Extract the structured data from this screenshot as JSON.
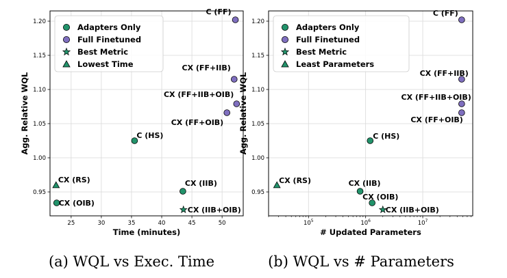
{
  "colors": {
    "adapters": "#22936b",
    "full": "#7f6fbf",
    "grid": "#d9d9d9",
    "edge": "#000000"
  },
  "legend_left": [
    {
      "marker": "circle",
      "color": "#22936b",
      "label": "Adapters Only"
    },
    {
      "marker": "circle",
      "color": "#7f6fbf",
      "label": "Full Finetuned"
    },
    {
      "marker": "star",
      "color": "#22936b",
      "label": "Best Metric"
    },
    {
      "marker": "triangle",
      "color": "#22936b",
      "label": "Lowest Time"
    }
  ],
  "legend_right": [
    {
      "marker": "circle",
      "color": "#22936b",
      "label": "Adapters Only"
    },
    {
      "marker": "circle",
      "color": "#7f6fbf",
      "label": "Full Finetuned"
    },
    {
      "marker": "star",
      "color": "#22936b",
      "label": "Best Metric"
    },
    {
      "marker": "triangle",
      "color": "#22936b",
      "label": "Least Parameters"
    }
  ],
  "chart_data": [
    {
      "type": "scatter",
      "caption": "(a) WQL vs Exec. Time",
      "xlabel": "Time (minutes)",
      "ylabel": "Agg. Relative WQL",
      "xlim": [
        21.5,
        53.5
      ],
      "ylim": [
        0.915,
        1.215
      ],
      "xticks": [
        25,
        30,
        35,
        40,
        45,
        50
      ],
      "xtick_labels": [
        "25",
        "30",
        "35",
        "40",
        "45",
        "50"
      ],
      "yticks": [
        0.95,
        1.0,
        1.05,
        1.1,
        1.15,
        1.2
      ],
      "ytick_labels": [
        "0.95",
        "1.00",
        "1.05",
        "1.10",
        "1.15",
        "1.20"
      ],
      "grid": true,
      "legend_position": "upper-left",
      "points": [
        {
          "label": "C (FF)",
          "x": 52.2,
          "y": 1.202,
          "group": "full",
          "marker": "circle",
          "anchor": "end",
          "dx": -6,
          "dy": -8
        },
        {
          "label": "CX (FF+IIB)",
          "x": 52.0,
          "y": 1.115,
          "group": "full",
          "marker": "circle",
          "anchor": "end",
          "dx": -5,
          "dy": -13
        },
        {
          "label": "CX (FF+IIB+OIB)",
          "x": 52.4,
          "y": 1.079,
          "group": "full",
          "marker": "circle",
          "anchor": "end",
          "dx": -4,
          "dy": -10
        },
        {
          "label": "CX (FF+OIB)",
          "x": 50.8,
          "y": 1.066,
          "group": "full",
          "marker": "circle",
          "anchor": "end",
          "dx": -5,
          "dy": 18
        },
        {
          "label": "C (HS)",
          "x": 35.5,
          "y": 1.025,
          "group": "adapters",
          "marker": "circle",
          "anchor": "start",
          "dx": 3,
          "dy": -4
        },
        {
          "label": "CX (RS)",
          "x": 22.5,
          "y": 0.96,
          "group": "adapters",
          "marker": "triangle",
          "anchor": "start",
          "dx": 3,
          "dy": -4
        },
        {
          "label": "CX (OIB)",
          "x": 22.6,
          "y": 0.934,
          "group": "adapters",
          "marker": "circle",
          "anchor": "start",
          "dx": 3,
          "dy": 4
        },
        {
          "label": "CX (IIB)",
          "x": 43.5,
          "y": 0.951,
          "group": "adapters",
          "marker": "circle",
          "anchor": "start",
          "dx": 3,
          "dy": -8
        },
        {
          "label": "CX (IIB+OIB)",
          "x": 43.6,
          "y": 0.924,
          "group": "adapters",
          "marker": "star",
          "anchor": "start",
          "dx": 6,
          "dy": 4
        }
      ]
    },
    {
      "type": "scatter",
      "caption": "(b) WQL vs # Parameters",
      "xlabel": "# Updated Parameters",
      "ylabel": "Agg. Relative WQL",
      "xscale": "log",
      "xlim": [
        20000,
        75000000
      ],
      "ylim": [
        0.915,
        1.215
      ],
      "xticks": [
        100000,
        1000000,
        10000000
      ],
      "xtick_labels": [
        {
          "base": "10",
          "exp": "5"
        },
        {
          "base": "10",
          "exp": "6"
        },
        {
          "base": "10",
          "exp": "7"
        }
      ],
      "yticks": [
        0.95,
        1.0,
        1.05,
        1.1,
        1.15,
        1.2
      ],
      "ytick_labels": [
        "0.95",
        "1.00",
        "1.05",
        "1.10",
        "1.15",
        "1.20"
      ],
      "grid": true,
      "legend_position": "upper-left",
      "points": [
        {
          "label": "C (FF)",
          "x": 48000000,
          "y": 1.202,
          "group": "full",
          "marker": "circle",
          "anchor": "end",
          "dx": -5,
          "dy": -6
        },
        {
          "label": "CX (FF+IIB)",
          "x": 48000000,
          "y": 1.115,
          "group": "full",
          "marker": "circle",
          "anchor": "end",
          "dx": 10,
          "dy": -5
        },
        {
          "label": "CX (FF+IIB+OIB)",
          "x": 48000000,
          "y": 1.079,
          "group": "full",
          "marker": "circle",
          "anchor": "end",
          "dx": 14,
          "dy": -6
        },
        {
          "label": "CX (FF+OIB)",
          "x": 48000000,
          "y": 1.066,
          "group": "full",
          "marker": "circle",
          "anchor": "end",
          "dx": 2,
          "dy": 14
        },
        {
          "label": "C (HS)",
          "x": 1200000,
          "y": 1.025,
          "group": "adapters",
          "marker": "circle",
          "anchor": "start",
          "dx": 4,
          "dy": -3
        },
        {
          "label": "CX (RS)",
          "x": 28000,
          "y": 0.96,
          "group": "adapters",
          "marker": "triangle",
          "anchor": "start",
          "dx": 3,
          "dy": -3
        },
        {
          "label": "CX (IIB)",
          "x": 800000,
          "y": 0.951,
          "group": "adapters",
          "marker": "circle",
          "anchor": "start",
          "dx": -17,
          "dy": -8
        },
        {
          "label": "CX (OIB)",
          "x": 1300000,
          "y": 0.934,
          "group": "adapters",
          "marker": "circle",
          "anchor": "start",
          "dx": -14,
          "dy": -5
        },
        {
          "label": "CX (IIB+OIB)",
          "x": 2000000,
          "y": 0.924,
          "group": "adapters",
          "marker": "star",
          "anchor": "start",
          "dx": 4,
          "dy": 4
        }
      ]
    }
  ]
}
